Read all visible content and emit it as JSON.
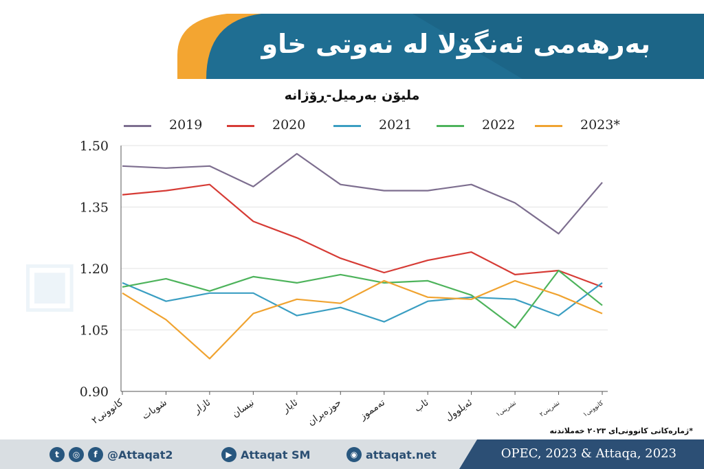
{
  "title": "بەرهەمی ئەنگۆلا لە نەوتی خاو",
  "note": "*ژمارەکانی کانوونی‌ای ٢٠٢٣ خەملاندنە",
  "footer": {
    "handle": "@Attaqat2",
    "youtube": "Attaqat SM",
    "website": "attaqat.net",
    "source": "OPEC, 2023 & Attaqa, 2023"
  },
  "icons": [
    "twitter-icon",
    "instagram-icon",
    "facebook-icon",
    "youtube-icon",
    "web-icon"
  ],
  "colors": {
    "header": "#1f6e92",
    "header_accent": "#f3a531",
    "footer_band": "#2c4f75"
  },
  "chart_data": {
    "type": "line",
    "title": "",
    "subtitle": "مليۆن بەرمیل-ڕۆژانە",
    "categories": [
      "کانوونی٢",
      "شوبات",
      "ئازار",
      "نیسان",
      "ئایار",
      "حوزەیران",
      "تەمموز",
      "ئاب",
      "ئەیلوول",
      "تشرینی١",
      "تشرینی٢",
      "کانوونی١"
    ],
    "ylim": [
      0.9,
      1.5
    ],
    "yticks": [
      "0.90",
      "1.05",
      "1.20",
      "1.35",
      "1.50"
    ],
    "grid": true,
    "legend_position": "top",
    "series": [
      {
        "name": "2019",
        "color": "#7d6e8f",
        "values": [
          1.45,
          1.445,
          1.45,
          1.4,
          1.48,
          1.405,
          1.39,
          1.39,
          1.405,
          1.36,
          1.285,
          1.41
        ]
      },
      {
        "name": "2020",
        "color": "#d63b35",
        "values": [
          1.38,
          1.39,
          1.405,
          1.315,
          1.275,
          1.225,
          1.19,
          1.22,
          1.24,
          1.185,
          1.195,
          1.155
        ]
      },
      {
        "name": "2021",
        "color": "#3a9ec2",
        "values": [
          1.165,
          1.12,
          1.14,
          1.14,
          1.085,
          1.105,
          1.07,
          1.12,
          1.13,
          1.125,
          1.085,
          1.165
        ]
      },
      {
        "name": "2022",
        "color": "#4db35b",
        "values": [
          1.155,
          1.175,
          1.145,
          1.18,
          1.165,
          1.185,
          1.165,
          1.17,
          1.135,
          1.055,
          1.195,
          1.11
        ]
      },
      {
        "name": "2023*",
        "color": "#f0a330",
        "values": [
          1.14,
          1.075,
          0.98,
          1.09,
          1.125,
          1.115,
          1.17,
          1.13,
          1.125,
          1.17,
          1.135,
          1.09
        ]
      }
    ]
  }
}
